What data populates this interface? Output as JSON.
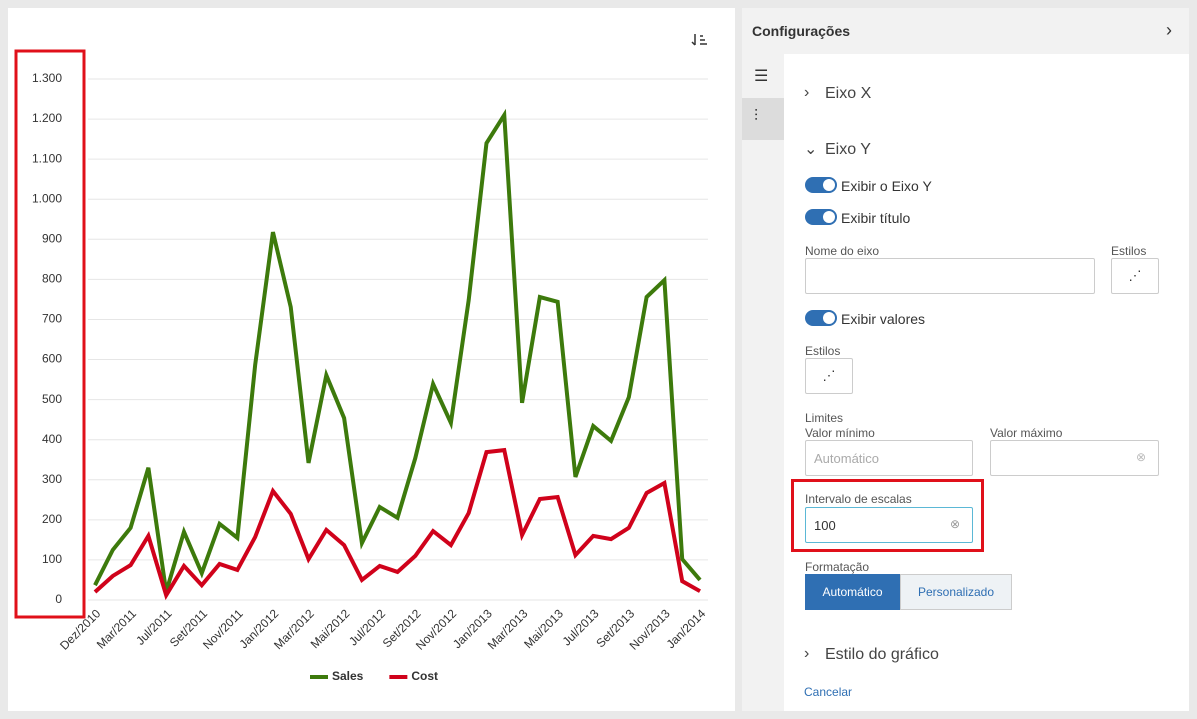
{
  "chart_data": {
    "type": "line",
    "categories": [
      "Dez/2010",
      null,
      "Mar/2011",
      null,
      "Jul/2011",
      null,
      "Set/2011",
      null,
      "Nov/2011",
      null,
      "Jan/2012",
      null,
      "Mar/2012",
      null,
      "Mai/2012",
      null,
      "Jul/2012",
      null,
      "Set/2012",
      null,
      "Nov/2012",
      null,
      "Jan/2013",
      null,
      "Mar/2013",
      null,
      "Mai/2013",
      null,
      "Jul/2013",
      null,
      "Set/2013",
      null,
      "Nov/2013",
      null,
      "Jan/2014"
    ],
    "series": [
      {
        "name": "Sales",
        "color": "#3d7a0c",
        "values": [
          37,
          125,
          180,
          330,
          20,
          170,
          67,
          190,
          155,
          586,
          918,
          731,
          342,
          561,
          454,
          142,
          232,
          205,
          354,
          539,
          442,
          748,
          1140,
          1210,
          492,
          756,
          744,
          307,
          434,
          397,
          506,
          756,
          798,
          102,
          50
        ]
      },
      {
        "name": "Cost",
        "color": "#d0021b",
        "values": [
          20,
          60,
          87,
          160,
          12,
          85,
          37,
          90,
          75,
          157,
          272,
          215,
          102,
          175,
          137,
          50,
          85,
          70,
          110,
          172,
          137,
          217,
          369,
          374,
          162,
          252,
          257,
          112,
          160,
          152,
          180,
          267,
          292,
          47,
          22
        ]
      }
    ],
    "ylim": [
      0,
      1300
    ],
    "yticks": [
      0,
      100,
      200,
      300,
      400,
      500,
      600,
      700,
      800,
      900,
      {
        "value": 1000,
        "label": "1.000"
      },
      {
        "value": 1100,
        "label": "1.100"
      },
      {
        "value": 1200,
        "label": "1.200"
      },
      {
        "value": 1300,
        "label": "1.300"
      }
    ],
    "grid": true,
    "legend": "bottom"
  },
  "panel": {
    "title": "Configurações",
    "sections": [
      "Eixo X",
      "Eixo Y",
      "Estilo do gráfico"
    ],
    "toggles": [
      "Exibir o Eixo Y",
      "Exibir título",
      "Exibir valores"
    ],
    "axis_name": "Nome do eixo",
    "styles": "Estilos",
    "styles2": "Estilos",
    "limits": "Limites",
    "min": "Valor mínimo",
    "min_placeholder": "Automático",
    "max": "Valor máximo",
    "interval": "Intervalo de escalas",
    "interval_value": "100",
    "format": "Formatação",
    "buttons": [
      "Automático",
      "Personalizado"
    ],
    "cancel": "Cancelar"
  }
}
